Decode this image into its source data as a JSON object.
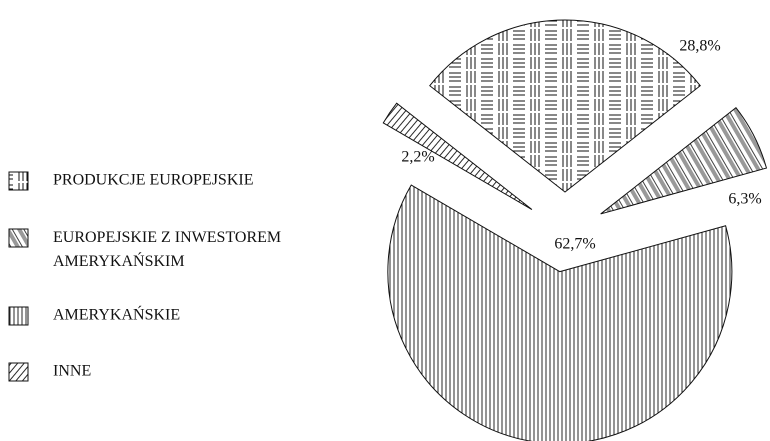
{
  "chart_data": {
    "type": "pie",
    "categories": [
      "PRODUKCJE EUROPEJSKIE",
      "EUROPEJSKIE Z INWESTOREM AMERYKAŃSKIM",
      "AMERYKAŃSKIE",
      "INNE"
    ],
    "values": [
      28.8,
      6.3,
      62.7,
      2.2
    ],
    "value_labels": [
      "28,8%",
      "6,3%",
      "62,7%",
      "2,2%"
    ],
    "exploded": true
  }
}
